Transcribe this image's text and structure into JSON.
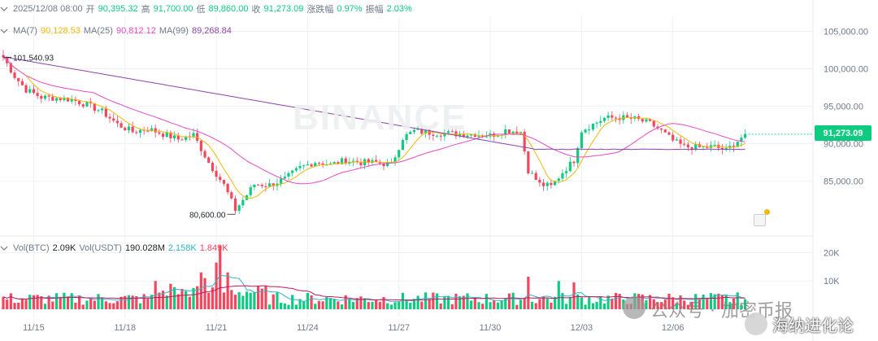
{
  "header": {
    "date": "2025/12/08 08:00",
    "open_label": "开",
    "open": "90,395.32",
    "high_label": "高",
    "high": "91,700.00",
    "low_label": "低",
    "low": "89,860.00",
    "close_label": "收",
    "close": "91,273.09",
    "change_label": "涨跌幅",
    "change": "0.97%",
    "amp_label": "振幅",
    "amp": "2.03%"
  },
  "ma_row": {
    "ma7_label": "MA(7)",
    "ma7": "90,128.53",
    "ma25_label": "MA(25)",
    "ma25": "90,812.12",
    "ma99_label": "MA(99)",
    "ma99": "89,268.84"
  },
  "vol_row": {
    "vol_label": "Vol(BTC)",
    "vol": "2.09K",
    "volusdt_label": "Vol(USDT)",
    "volusdt": "190.028M",
    "v1": "2.158K",
    "v2": "1.849K"
  },
  "annotations": {
    "high_mark": "101,540.93",
    "low_mark": "80,600.00"
  },
  "current_price": "91,273.09",
  "watermark": {
    "logo": "BINANCE",
    "wechat": "公众号 · 加密币报",
    "site": "海纳进化论"
  },
  "colors": {
    "up": "#0ecb81",
    "down": "#f6465d",
    "ma7": "#f0b90b",
    "ma25": "#e64ac5",
    "ma99": "#8e44ad",
    "grid": "#f0f1f2"
  },
  "chart_data": {
    "type": "candlestick",
    "price_axis": {
      "ticks": [
        85000,
        90000,
        95000,
        100000,
        105000
      ],
      "labels": [
        "85,000.00",
        "90,000.00",
        "95,000.00",
        "100,000.00",
        "105,000.00"
      ],
      "range": [
        79000,
        107000
      ]
    },
    "volume_axis": {
      "ticks": [
        10000,
        20000
      ],
      "labels": [
        "10K",
        "20K"
      ],
      "range": [
        0,
        23000
      ]
    },
    "x_labels": [
      {
        "label": "11/15",
        "index": 8
      },
      {
        "label": "11/18",
        "index": 32
      },
      {
        "label": "11/21",
        "index": 56
      },
      {
        "label": "11/24",
        "index": 80
      },
      {
        "label": "11/27",
        "index": 104
      },
      {
        "label": "11/30",
        "index": 128
      },
      {
        "label": "12/03",
        "index": 152
      },
      {
        "label": "12/06",
        "index": 176
      }
    ],
    "anchors": [
      [
        0,
        101540
      ],
      [
        3,
        99000
      ],
      [
        6,
        97200
      ],
      [
        10,
        96200
      ],
      [
        14,
        96100
      ],
      [
        18,
        95900
      ],
      [
        22,
        95200
      ],
      [
        26,
        94300
      ],
      [
        30,
        92600
      ],
      [
        34,
        91600
      ],
      [
        38,
        92000
      ],
      [
        42,
        91300
      ],
      [
        46,
        90600
      ],
      [
        50,
        91200
      ],
      [
        54,
        87500
      ],
      [
        58,
        84500
      ],
      [
        61,
        81200
      ],
      [
        63,
        82500
      ],
      [
        66,
        84600
      ],
      [
        70,
        84500
      ],
      [
        74,
        85300
      ],
      [
        78,
        86800
      ],
      [
        82,
        87600
      ],
      [
        86,
        87200
      ],
      [
        90,
        87800
      ],
      [
        94,
        87500
      ],
      [
        98,
        87500
      ],
      [
        102,
        87200
      ],
      [
        105,
        90800
      ],
      [
        108,
        91700
      ],
      [
        112,
        91500
      ],
      [
        116,
        91400
      ],
      [
        120,
        91300
      ],
      [
        124,
        91300
      ],
      [
        128,
        91100
      ],
      [
        132,
        91800
      ],
      [
        136,
        91600
      ],
      [
        138,
        86500
      ],
      [
        141,
        84600
      ],
      [
        144,
        84300
      ],
      [
        147,
        86200
      ],
      [
        150,
        87800
      ],
      [
        152,
        91800
      ],
      [
        155,
        92600
      ],
      [
        158,
        93400
      ],
      [
        162,
        93500
      ],
      [
        166,
        93300
      ],
      [
        170,
        92700
      ],
      [
        173,
        91700
      ],
      [
        176,
        90400
      ],
      [
        179,
        89600
      ],
      [
        183,
        89500
      ],
      [
        187,
        89600
      ],
      [
        190,
        89100
      ],
      [
        193,
        90400
      ],
      [
        195,
        91273
      ]
    ],
    "volume_spikes": [
      [
        52,
        13000
      ],
      [
        56,
        16500
      ],
      [
        57,
        22500
      ],
      [
        59,
        13000
      ],
      [
        138,
        11500
      ],
      [
        146,
        10000
      ],
      [
        150,
        9500
      ],
      [
        53,
        11000
      ],
      [
        44,
        9000
      ],
      [
        40,
        10000
      ]
    ]
  }
}
